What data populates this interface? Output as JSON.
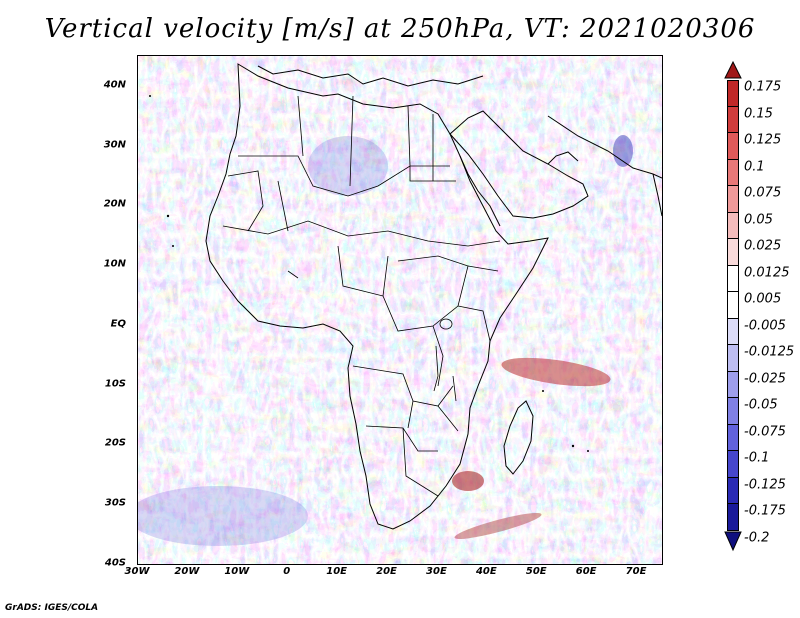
{
  "title": "Vertical velocity [m/s] at 250hPa, VT: 2021020306",
  "footer": "GrADS: IGES/COLA",
  "map": {
    "lon_range": [
      -30,
      75
    ],
    "lat_range": [
      -40,
      45
    ],
    "lat_labels": [
      "40N",
      "30N",
      "20N",
      "10N",
      "EQ",
      "10S",
      "20S",
      "30S",
      "40S"
    ],
    "lat_values": [
      40,
      30,
      20,
      10,
      0,
      -10,
      -20,
      -30,
      -40
    ],
    "lon_labels": [
      "30W",
      "20W",
      "10W",
      "0",
      "10E",
      "20E",
      "30E",
      "40E",
      "50E",
      "60E",
      "70E"
    ],
    "lon_values": [
      -30,
      -20,
      -10,
      0,
      10,
      20,
      30,
      40,
      50,
      60,
      70
    ]
  },
  "colorbar": {
    "labels": [
      "0.175",
      "0.15",
      "0.125",
      "0.1",
      "0.075",
      "0.05",
      "0.025",
      "0.0125",
      "0.005",
      "-0.005",
      "-0.0125",
      "-0.025",
      "-0.05",
      "-0.075",
      "-0.1",
      "-0.125",
      "-0.175",
      "-0.2"
    ],
    "colors": [
      "#a01818",
      "#c02828",
      "#d03c3c",
      "#e05a5a",
      "#e87878",
      "#f09a9a",
      "#f5bcbc",
      "#f9dada",
      "#ffffff",
      "#ffffff",
      "#dcdcf8",
      "#bebef2",
      "#9e9eec",
      "#8080e4",
      "#6262dc",
      "#4646cc",
      "#2a2ab4",
      "#1a1a9a",
      "#10107e"
    ]
  }
}
